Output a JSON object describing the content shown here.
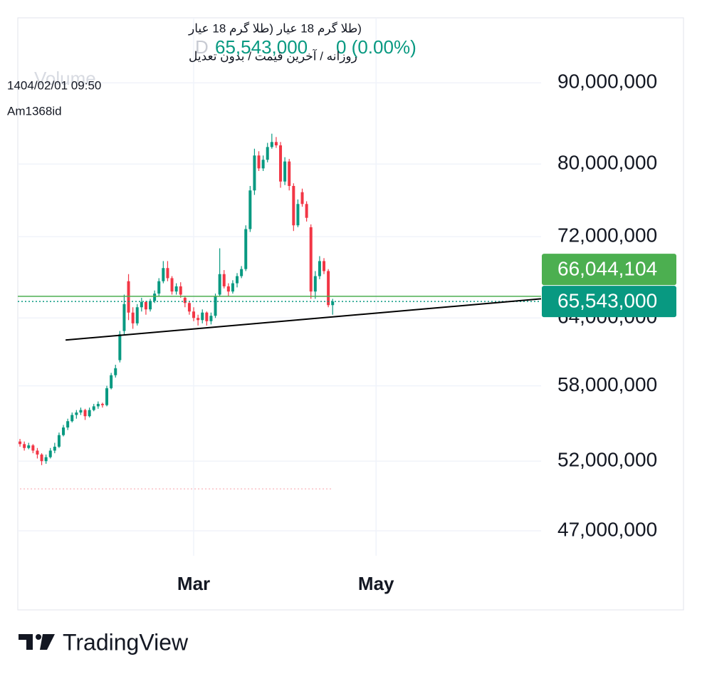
{
  "chart_data": {
    "type": "candlestick",
    "legend_lines": [
      "(طلا گرم 18 عيار (طلا گرم 18 عيار",
      "روزانه / آخرین قیمت / بدون تعدیل",
      "1404/02/01 09:50",
      "Am1368id"
    ],
    "interval": "D",
    "ghost_text": "Volume",
    "last_price": "65,543,000",
    "change": "0 (0.00%)",
    "brand": "TradingView",
    "log_scale": true,
    "grid": true,
    "up_color": "#089981",
    "down_color": "#f23645",
    "ylim": [
      45100000,
      98900000
    ],
    "yticks": [
      {
        "value": 47000000,
        "label": "47,000,000"
      },
      {
        "value": 52000000,
        "label": "52,000,000"
      },
      {
        "value": 58000000,
        "label": "58,000,000"
      },
      {
        "value": 64000000,
        "label": "64,000,000"
      },
      {
        "value": 72000000,
        "label": "72,000,000"
      },
      {
        "value": 80000000,
        "label": "80,000,000"
      },
      {
        "value": 90000000,
        "label": "90,000,000"
      }
    ],
    "xlim": [
      -0.5,
      120
    ],
    "xticks": [
      {
        "value": 40,
        "label": "Mar"
      },
      {
        "value": 82,
        "label": "May"
      }
    ],
    "open": [
      53500000,
      53300000,
      53000000,
      53200000,
      52800000,
      52500000,
      52000000,
      52300000,
      52800000,
      53100000,
      54000000,
      54600000,
      55100000,
      55600000,
      55800000,
      56000000,
      55500000,
      56000000,
      56300000,
      56500000,
      56400000,
      57800000,
      58900000,
      60200000,
      62800000,
      67500000,
      64500000,
      63500000,
      65000000,
      65500000,
      64800000,
      65600000,
      66300000,
      67500000,
      68800000,
      67800000,
      66500000,
      67000000,
      65900000,
      65400000,
      64600000,
      64000000,
      63800000,
      64500000,
      63700000,
      64200000,
      66200000,
      68200000,
      67000000,
      66500000,
      67300000,
      68000000,
      68700000,
      72800000,
      77000000,
      81000000,
      79500000,
      80500000,
      82000000,
      82600000,
      82200000,
      78000000,
      80300000,
      77500000,
      73200000,
      76800000,
      75500000,
      73000000,
      66500000,
      68000000,
      69500000,
      68500000,
      65200000
    ],
    "high": [
      53700000,
      53500000,
      53400000,
      53300000,
      53000000,
      52600000,
      52500000,
      53000000,
      53400000,
      54200000,
      54800000,
      55300000,
      55800000,
      56000000,
      56200000,
      56100000,
      56200000,
      56500000,
      56700000,
      56600000,
      58000000,
      59100000,
      59800000,
      62800000,
      66200000,
      68200000,
      65000000,
      65300000,
      65900000,
      65600000,
      65800000,
      66600000,
      67800000,
      69500000,
      69500000,
      68000000,
      67300000,
      67400000,
      66000000,
      65600000,
      65000000,
      64300000,
      64800000,
      64600000,
      64500000,
      66300000,
      70800000,
      68600000,
      67300000,
      67600000,
      68300000,
      69000000,
      73200000,
      77500000,
      81800000,
      81500000,
      81000000,
      82500000,
      83600000,
      83200000,
      82600000,
      80800000,
      80600000,
      77800000,
      76000000,
      77200000,
      75800000,
      73300000,
      68500000,
      70000000,
      69800000,
      68700000,
      65800000
    ],
    "low": [
      53100000,
      52800000,
      52900000,
      52600000,
      52200000,
      51700000,
      51800000,
      52200000,
      52600000,
      53000000,
      53900000,
      54400000,
      55000000,
      55300000,
      55600000,
      55200000,
      55400000,
      55900000,
      56100000,
      56200000,
      56300000,
      57700000,
      58700000,
      60000000,
      62500000,
      63800000,
      63000000,
      63300000,
      64600000,
      64300000,
      64600000,
      65400000,
      66000000,
      67300000,
      67500000,
      66200000,
      66200000,
      65900000,
      65000000,
      64300000,
      63700000,
      63300000,
      63500000,
      63300000,
      63400000,
      64000000,
      66000000,
      66800000,
      66000000,
      66300000,
      66900000,
      67800000,
      68500000,
      72500000,
      76500000,
      79200000,
      79200000,
      80200000,
      81800000,
      81900000,
      77300000,
      77600000,
      77000000,
      72600000,
      73000000,
      75200000,
      73600000,
      65800000,
      65800000,
      67700000,
      68200000,
      65000000,
      64300000
    ],
    "close": [
      53300000,
      53000000,
      53200000,
      52800000,
      52500000,
      52000000,
      52300000,
      52800000,
      53100000,
      54000000,
      54600000,
      55100000,
      55600000,
      55800000,
      56000000,
      55500000,
      56000000,
      56300000,
      56500000,
      56400000,
      57800000,
      58900000,
      59500000,
      62500000,
      65300000,
      64500000,
      63500000,
      65000000,
      65500000,
      64800000,
      65600000,
      66300000,
      67500000,
      68800000,
      67800000,
      66500000,
      67000000,
      66200000,
      65400000,
      64600000,
      64000000,
      63800000,
      64500000,
      63700000,
      64200000,
      66000000,
      68200000,
      67000000,
      66500000,
      67300000,
      68000000,
      68700000,
      72800000,
      77000000,
      81000000,
      79500000,
      80500000,
      82000000,
      82600000,
      82200000,
      78000000,
      80300000,
      77500000,
      73200000,
      75500000,
      75500000,
      74000000,
      66500000,
      68000000,
      69500000,
      68500000,
      65200000,
      65543000
    ],
    "price_lines": [
      {
        "value": 66044104,
        "label": "66,044,104",
        "color": "#4caf50",
        "style": "solid"
      },
      {
        "value": 65543000,
        "label": "65,543,000",
        "color": "#089981",
        "style": "dotted"
      }
    ],
    "trendline": {
      "x": [
        10.5,
        120
      ],
      "values": [
        61980000,
        65800000
      ],
      "color": "#000000"
    },
    "reference_line": {
      "value": 49950000,
      "x": [
        0,
        72
      ]
    }
  }
}
